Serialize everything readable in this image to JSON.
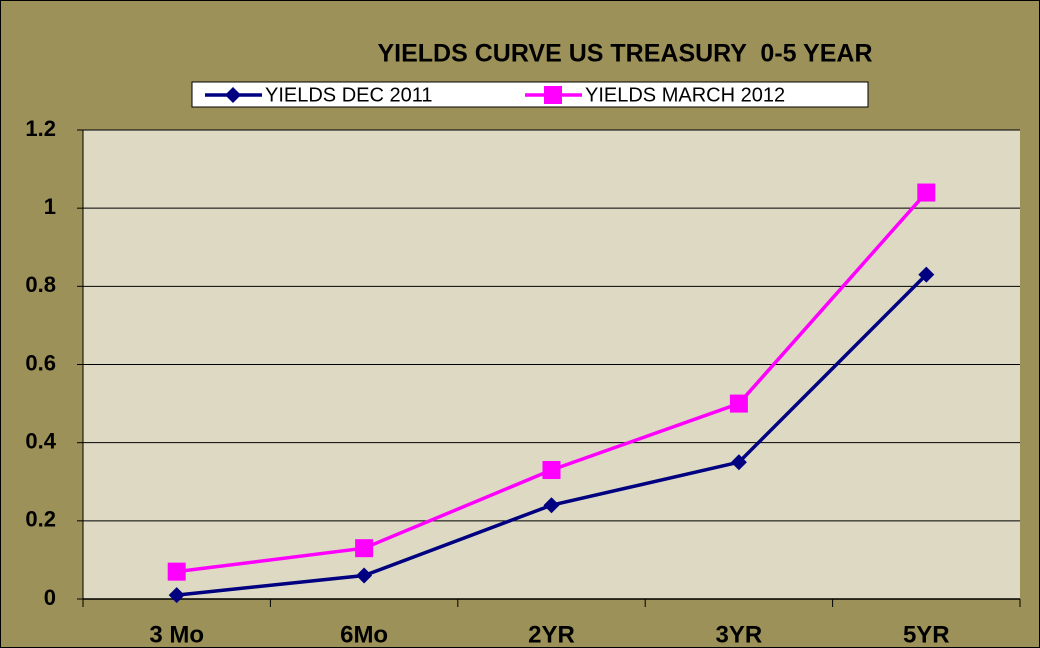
{
  "chart_data": {
    "type": "line",
    "title": "YIELDS CURVE US TREASURY  0-5 YEAR",
    "categories": [
      "3 Mo",
      "6Mo",
      "2YR",
      "3YR",
      "5YR"
    ],
    "series": [
      {
        "name": "YIELDS DEC 2011",
        "color": "#000080",
        "marker": "diamond",
        "values": [
          0.01,
          0.06,
          0.24,
          0.35,
          0.83
        ]
      },
      {
        "name": "YIELDS MARCH 2012",
        "color": "#ff00ff",
        "marker": "square",
        "values": [
          0.07,
          0.13,
          0.33,
          0.5,
          1.04
        ]
      }
    ],
    "ylim": [
      0,
      1.2
    ],
    "yticks": [
      0,
      0.2,
      0.4,
      0.6,
      0.8,
      1,
      1.2
    ],
    "grid": true,
    "legend": "top"
  }
}
